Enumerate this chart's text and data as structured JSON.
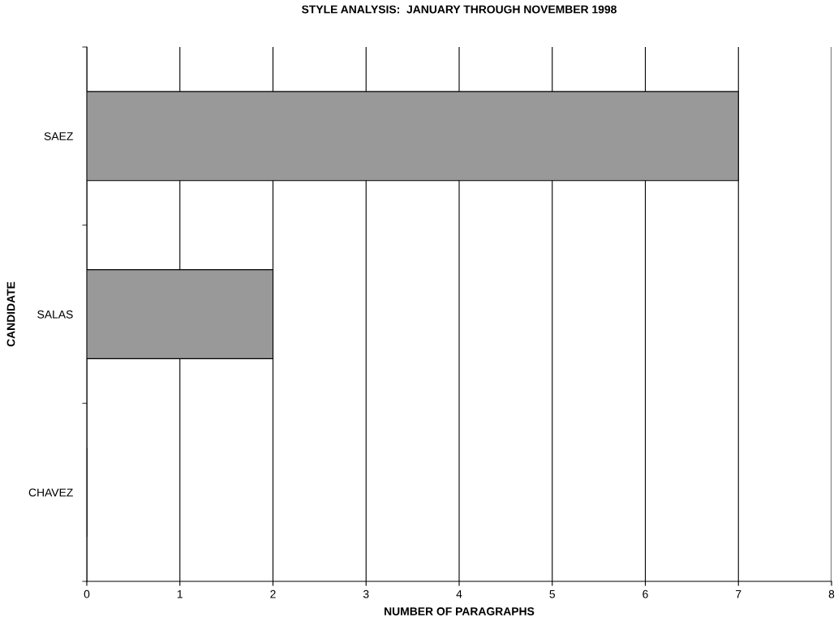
{
  "chart_data": {
    "type": "bar",
    "orientation": "horizontal",
    "title": "STYLE ANALYSIS:  JANUARY THROUGH NOVEMBER 1998",
    "xlabel": "NUMBER OF PARAGRAPHS",
    "ylabel": "CANDIDATE",
    "categories": [
      "SAEZ",
      "SALAS",
      "CHAVEZ"
    ],
    "values": [
      7,
      2,
      0
    ],
    "color": "#999999",
    "xlim": [
      0,
      8
    ],
    "xticks": [
      0,
      1,
      2,
      3,
      4,
      5,
      6,
      7,
      8
    ],
    "grid": "x"
  }
}
